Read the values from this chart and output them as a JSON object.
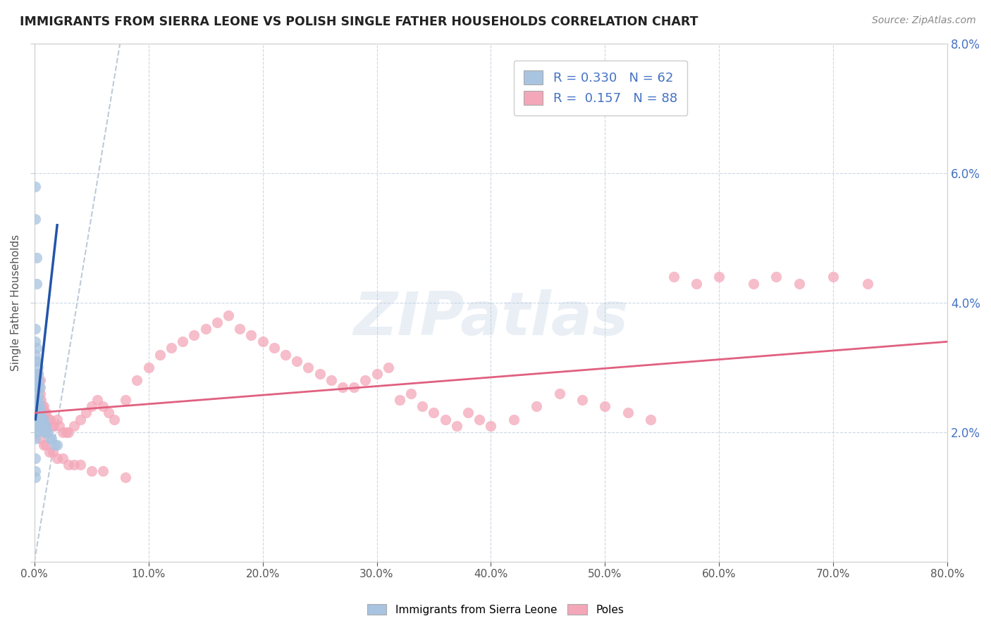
{
  "title": "IMMIGRANTS FROM SIERRA LEONE VS POLISH SINGLE FATHER HOUSEHOLDS CORRELATION CHART",
  "source": "Source: ZipAtlas.com",
  "ylabel": "Single Father Households",
  "xlim": [
    0,
    0.8
  ],
  "ylim": [
    0,
    0.08
  ],
  "xticks": [
    0.0,
    0.1,
    0.2,
    0.3,
    0.4,
    0.5,
    0.6,
    0.7,
    0.8
  ],
  "yticks": [
    0.0,
    0.02,
    0.04,
    0.06,
    0.08
  ],
  "xtick_labels": [
    "0.0%",
    "10.0%",
    "20.0%",
    "30.0%",
    "40.0%",
    "50.0%",
    "60.0%",
    "70.0%",
    "80.0%"
  ],
  "ytick_labels_right": [
    "",
    "2.0%",
    "4.0%",
    "6.0%",
    "8.0%"
  ],
  "blue_R": 0.33,
  "blue_N": 62,
  "pink_R": 0.157,
  "pink_N": 88,
  "blue_color": "#a8c4e0",
  "pink_color": "#f4a7b9",
  "blue_line_color": "#2255aa",
  "pink_line_color": "#e06080",
  "ref_line_color": "#b8c4d4",
  "watermark": "ZIPatlas",
  "legend_label_blue": "Immigrants from Sierra Leone",
  "legend_label_pink": "Poles",
  "blue_scatter_x": [
    0.001,
    0.001,
    0.001,
    0.001,
    0.001,
    0.001,
    0.001,
    0.001,
    0.001,
    0.001,
    0.002,
    0.002,
    0.002,
    0.002,
    0.002,
    0.002,
    0.002,
    0.002,
    0.003,
    0.003,
    0.003,
    0.003,
    0.003,
    0.004,
    0.004,
    0.004,
    0.004,
    0.005,
    0.005,
    0.005,
    0.006,
    0.006,
    0.007,
    0.007,
    0.008,
    0.008,
    0.009,
    0.009,
    0.01,
    0.01,
    0.012,
    0.014,
    0.015,
    0.018,
    0.02,
    0.001,
    0.001,
    0.001,
    0.002,
    0.002,
    0.003,
    0.003,
    0.004,
    0.005,
    0.001,
    0.001,
    0.002,
    0.002,
    0.001,
    0.001,
    0.001
  ],
  "blue_scatter_y": [
    0.031,
    0.028,
    0.027,
    0.025,
    0.024,
    0.023,
    0.022,
    0.021,
    0.02,
    0.019,
    0.029,
    0.027,
    0.025,
    0.024,
    0.023,
    0.022,
    0.021,
    0.02,
    0.026,
    0.024,
    0.023,
    0.022,
    0.021,
    0.025,
    0.023,
    0.022,
    0.021,
    0.024,
    0.022,
    0.021,
    0.023,
    0.022,
    0.022,
    0.021,
    0.022,
    0.021,
    0.021,
    0.02,
    0.021,
    0.02,
    0.02,
    0.019,
    0.019,
    0.018,
    0.018,
    0.036,
    0.034,
    0.032,
    0.033,
    0.031,
    0.03,
    0.029,
    0.028,
    0.027,
    0.058,
    0.053,
    0.047,
    0.043,
    0.016,
    0.014,
    0.013
  ],
  "pink_scatter_x": [
    0.003,
    0.004,
    0.005,
    0.005,
    0.006,
    0.007,
    0.008,
    0.009,
    0.01,
    0.012,
    0.014,
    0.015,
    0.017,
    0.02,
    0.022,
    0.025,
    0.028,
    0.03,
    0.035,
    0.04,
    0.045,
    0.05,
    0.055,
    0.06,
    0.065,
    0.07,
    0.08,
    0.09,
    0.1,
    0.11,
    0.12,
    0.13,
    0.14,
    0.15,
    0.16,
    0.17,
    0.18,
    0.19,
    0.2,
    0.21,
    0.22,
    0.23,
    0.24,
    0.25,
    0.26,
    0.27,
    0.28,
    0.29,
    0.3,
    0.31,
    0.32,
    0.33,
    0.34,
    0.35,
    0.36,
    0.37,
    0.38,
    0.39,
    0.4,
    0.42,
    0.44,
    0.46,
    0.48,
    0.5,
    0.52,
    0.54,
    0.56,
    0.58,
    0.6,
    0.63,
    0.65,
    0.67,
    0.7,
    0.73,
    0.005,
    0.008,
    0.01,
    0.013,
    0.016,
    0.02,
    0.025,
    0.03,
    0.035,
    0.04,
    0.05,
    0.06,
    0.08
  ],
  "pink_scatter_y": [
    0.029,
    0.027,
    0.026,
    0.028,
    0.025,
    0.024,
    0.024,
    0.023,
    0.023,
    0.022,
    0.022,
    0.021,
    0.021,
    0.022,
    0.021,
    0.02,
    0.02,
    0.02,
    0.021,
    0.022,
    0.023,
    0.024,
    0.025,
    0.024,
    0.023,
    0.022,
    0.025,
    0.028,
    0.03,
    0.032,
    0.033,
    0.034,
    0.035,
    0.036,
    0.037,
    0.038,
    0.036,
    0.035,
    0.034,
    0.033,
    0.032,
    0.031,
    0.03,
    0.029,
    0.028,
    0.027,
    0.027,
    0.028,
    0.029,
    0.03,
    0.025,
    0.026,
    0.024,
    0.023,
    0.022,
    0.021,
    0.023,
    0.022,
    0.021,
    0.022,
    0.024,
    0.026,
    0.025,
    0.024,
    0.023,
    0.022,
    0.044,
    0.043,
    0.044,
    0.043,
    0.044,
    0.043,
    0.044,
    0.043,
    0.019,
    0.018,
    0.018,
    0.017,
    0.017,
    0.016,
    0.016,
    0.015,
    0.015,
    0.015,
    0.014,
    0.014,
    0.013
  ],
  "blue_trend_x0": 0.001,
  "blue_trend_x1": 0.02,
  "blue_trend_y0": 0.022,
  "blue_trend_y1": 0.052,
  "pink_trend_x0": 0.0,
  "pink_trend_x1": 0.8,
  "pink_trend_y0": 0.023,
  "pink_trend_y1": 0.034,
  "ref_line_x0": 0.0,
  "ref_line_x1": 0.075,
  "ref_line_y0": 0.0,
  "ref_line_y1": 0.08
}
